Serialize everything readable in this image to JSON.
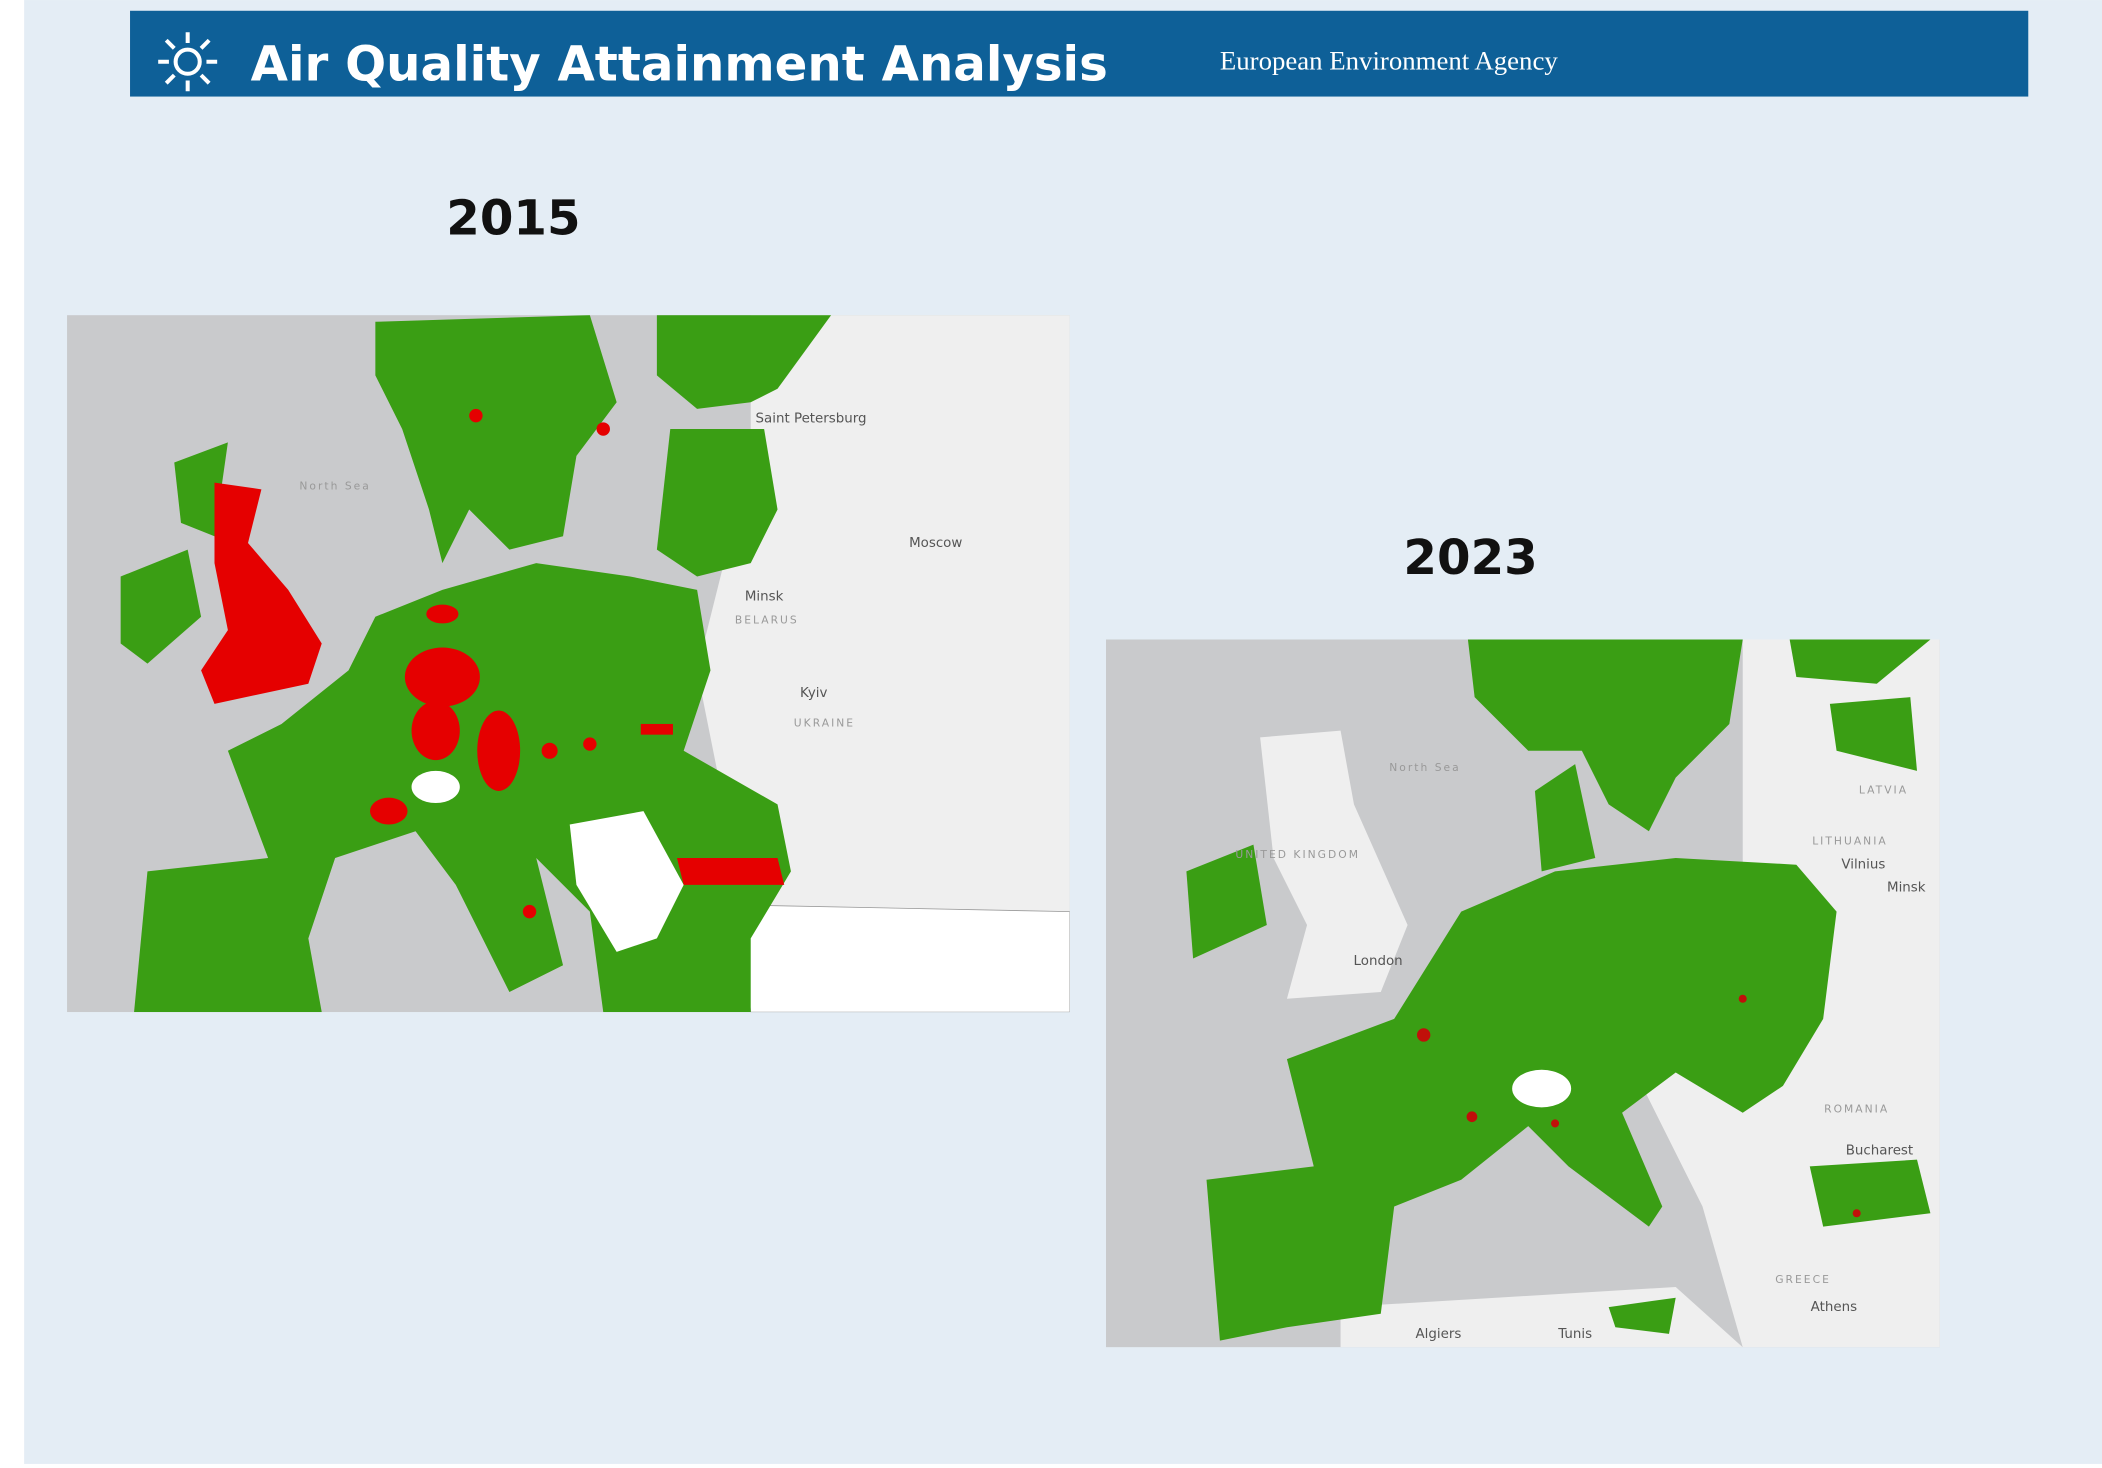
{
  "header": {
    "title": "Air Quality Attainment Analysis",
    "agency": "European Environment Agency"
  },
  "maps": [
    {
      "year": "2015",
      "labels": [
        "North Sea",
        "Saint Petersburg",
        "Moscow",
        "Minsk",
        "BELARUS",
        "Kyiv",
        "UKRAINE"
      ]
    },
    {
      "year": "2023",
      "labels": [
        "North Sea",
        "UNITED KINGDOM",
        "London",
        "LATVIA",
        "LITHUANIA",
        "Vilnius",
        "Minsk",
        "ROMANIA",
        "Bucharest",
        "GREECE",
        "Athens",
        "Algiers",
        "Tunis"
      ]
    }
  ]
}
